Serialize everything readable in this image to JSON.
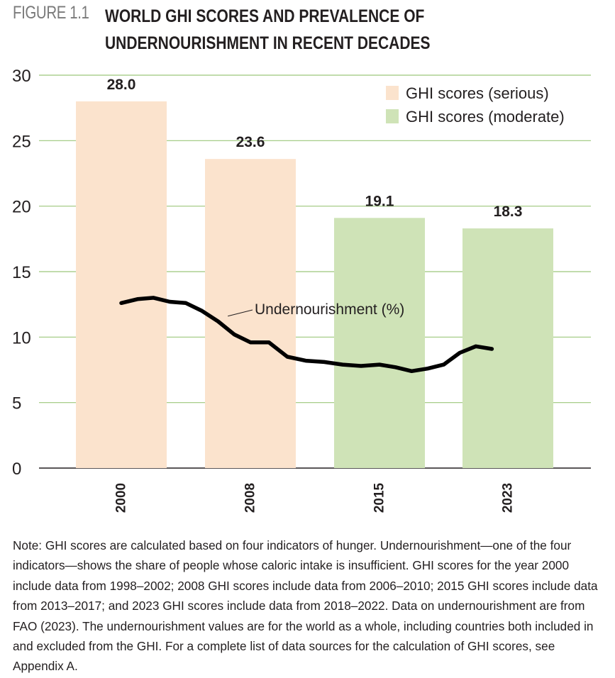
{
  "figure": {
    "label": "FIGURE 1.1",
    "title_line1": "WORLD GHI SCORES AND PREVALENCE OF",
    "title_line2": "UNDERNOURISHMENT IN RECENT DECADES"
  },
  "chart_data": {
    "type": "bar",
    "categories": [
      "2000",
      "2008",
      "2015",
      "2023"
    ],
    "values": [
      28.0,
      23.6,
      19.1,
      18.3
    ],
    "value_labels": [
      "28.0",
      "23.6",
      "19.1",
      "18.3"
    ],
    "bar_severity": [
      "serious",
      "serious",
      "moderate",
      "moderate"
    ],
    "ylim": [
      0,
      30
    ],
    "yticks": [
      0,
      5,
      10,
      15,
      20,
      25,
      30
    ],
    "grid": true,
    "legend_position": "top-right",
    "legend": [
      {
        "label": "GHI scores (serious)",
        "color": "#fbe3cd"
      },
      {
        "label": "GHI scores (moderate)",
        "color": "#cfe3b7"
      }
    ],
    "colors": {
      "serious": "#fbe3cd",
      "moderate": "#cfe3b7",
      "grid": "#9cc77a",
      "line": "#000000"
    },
    "line_series": {
      "name": "Undernourishment (%)",
      "x": [
        2000,
        2001,
        2002,
        2003,
        2004,
        2005,
        2006,
        2007,
        2008,
        2009,
        2010,
        2011,
        2012,
        2013,
        2014,
        2015,
        2016,
        2017,
        2018,
        2019,
        2020,
        2021,
        2022
      ],
      "values": [
        12.6,
        12.9,
        13.0,
        12.7,
        12.6,
        12.0,
        11.2,
        10.2,
        9.6,
        9.6,
        8.5,
        8.2,
        8.1,
        7.9,
        7.8,
        7.9,
        7.7,
        7.4,
        7.6,
        7.9,
        8.8,
        9.3,
        9.1
      ]
    }
  },
  "note": "Note: GHI scores are calculated based on four indicators of hunger. Undernourishment—one of the four indicators—shows the share of people whose caloric intake is insufficient. GHI scores for the year 2000 include data from 1998–2002; 2008 GHI scores include data from 2006–2010; 2015 GHI scores include data from 2013–2017; and 2023 GHI scores include data from 2018–2022. Data on undernourishment are from FAO (2023). The undernourishment values are for the world as a whole, including countries both included in and excluded from the GHI. For a complete list of data sources for the calculation of GHI scores, see Appendix A."
}
